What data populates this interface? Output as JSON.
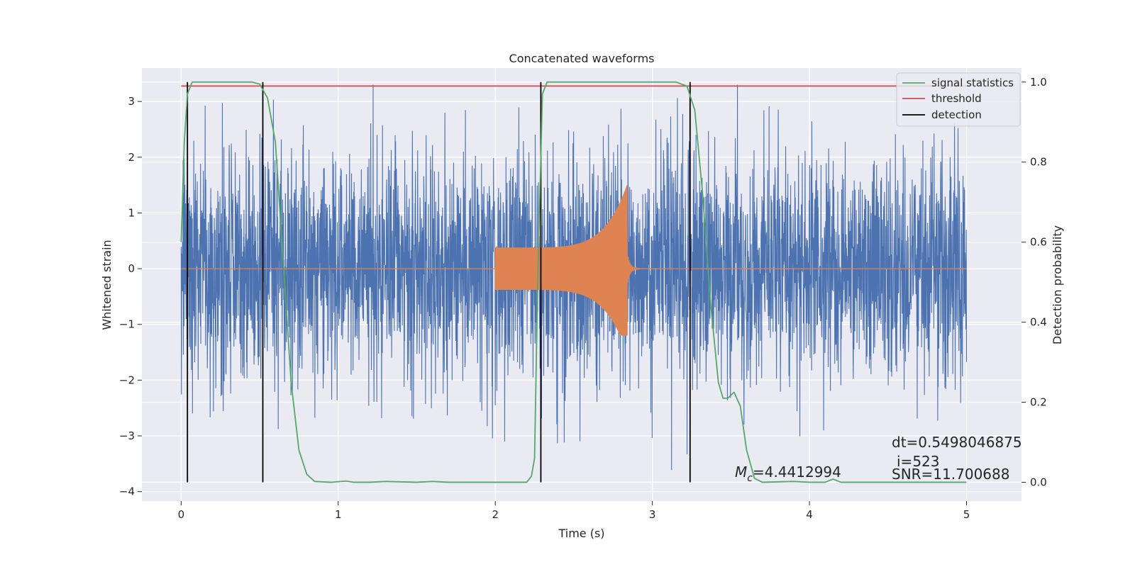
{
  "chart_data": {
    "type": "line",
    "title": "Concatenated waveforms",
    "xlabel": "Time (s)",
    "ylabel": "Whitened strain",
    "y2label": "Detection probability",
    "xlim": [
      -0.25,
      5.35
    ],
    "ylim": [
      -4.17,
      3.6
    ],
    "y2lim": [
      -0.047,
      1.035
    ],
    "xticks": [
      0,
      1,
      2,
      3,
      4,
      5
    ],
    "xtick_labels": [
      "0",
      "1",
      "2",
      "3",
      "4",
      "5"
    ],
    "yticks": [
      -4,
      -3,
      -2,
      -1,
      0,
      1,
      2,
      3
    ],
    "ytick_labels": [
      "−4",
      "−3",
      "−2",
      "−1",
      "0",
      "1",
      "2",
      "3"
    ],
    "y2ticks": [
      0.0,
      0.2,
      0.4,
      0.6,
      0.8,
      1.0
    ],
    "y2tick_labels": [
      "0.0",
      "0.2",
      "0.4",
      "0.6",
      "0.8",
      "1.0"
    ],
    "grid": true,
    "legend_position": "top-right",
    "colors": {
      "strain": "#4c72b0",
      "injection": "#dd8452",
      "signal_statistics": "#55a868",
      "threshold": "#c44e52",
      "detection": "#000000",
      "axes_bg": "#eaeaf2",
      "grid": "#ffffff"
    },
    "legend": [
      {
        "label": "signal statistics",
        "color": "#55a868"
      },
      {
        "label": "threshold",
        "color": "#c44e52"
      },
      {
        "label": "detection",
        "color": "#000000"
      }
    ],
    "strain": {
      "t_start": 0,
      "t_end": 5,
      "noise_sigma": 1.0,
      "peak_abs": 3.3
    },
    "injection": {
      "t_start": 2.0,
      "t_merger": 2.84,
      "amp_start": 0.38,
      "amp_peak_pos": 1.5,
      "amp_peak_neg": -1.2
    },
    "signal_statistics": {
      "points": [
        [
          0.0,
          0.6
        ],
        [
          0.02,
          0.85
        ],
        [
          0.04,
          0.97
        ],
        [
          0.07,
          1.0
        ],
        [
          0.45,
          1.0
        ],
        [
          0.5,
          0.995
        ],
        [
          0.55,
          0.96
        ],
        [
          0.6,
          0.85
        ],
        [
          0.65,
          0.55
        ],
        [
          0.7,
          0.25
        ],
        [
          0.75,
          0.08
        ],
        [
          0.8,
          0.02
        ],
        [
          0.85,
          0.002
        ],
        [
          0.95,
          0.0
        ],
        [
          1.05,
          0.003
        ],
        [
          1.1,
          0.0
        ],
        [
          1.2,
          0.0
        ],
        [
          1.3,
          0.002
        ],
        [
          1.5,
          0.0
        ],
        [
          1.6,
          0.002
        ],
        [
          1.7,
          0.0
        ],
        [
          2.0,
          0.0
        ],
        [
          2.2,
          0.0
        ],
        [
          2.23,
          0.015
        ],
        [
          2.25,
          0.06
        ],
        [
          2.27,
          0.5
        ],
        [
          2.3,
          0.97
        ],
        [
          2.33,
          1.0
        ],
        [
          3.15,
          1.0
        ],
        [
          3.22,
          0.99
        ],
        [
          3.27,
          0.93
        ],
        [
          3.32,
          0.72
        ],
        [
          3.37,
          0.45
        ],
        [
          3.42,
          0.25
        ],
        [
          3.45,
          0.21
        ],
        [
          3.48,
          0.21
        ],
        [
          3.52,
          0.225
        ],
        [
          3.56,
          0.19
        ],
        [
          3.6,
          0.08
        ],
        [
          3.65,
          0.01
        ],
        [
          3.7,
          0.0
        ],
        [
          3.9,
          0.002
        ],
        [
          4.0,
          0.0
        ],
        [
          4.1,
          0.0
        ],
        [
          4.15,
          0.008
        ],
        [
          4.2,
          0.0
        ],
        [
          5.0,
          0.0
        ]
      ]
    },
    "threshold": {
      "value": 0.99,
      "x_range": [
        0,
        5
      ]
    },
    "detections": [
      0.04,
      0.52,
      2.29,
      3.24
    ],
    "annotations": {
      "mc": "=4.4412994",
      "dt": "dt=0.5498046875",
      "i": "i=523",
      "snr": "SNR=11.700688"
    }
  }
}
